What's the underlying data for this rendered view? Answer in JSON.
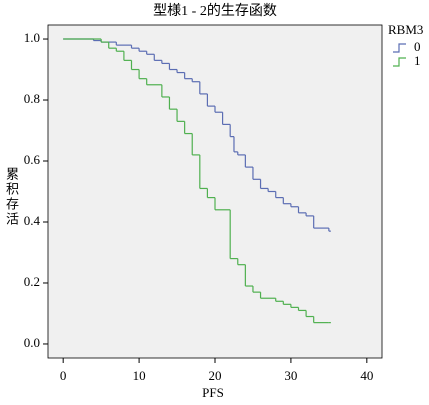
{
  "chart_data": {
    "type": "step",
    "title": "型様1 - 2的生存函数",
    "xlabel": "PFS",
    "ylabel": "累积存活",
    "legend_title": "RBM3",
    "legend": "right",
    "xlim": [
      -2,
      42
    ],
    "ylim": [
      -0.046,
      1.046
    ],
    "xticks": [
      0,
      10,
      20,
      30,
      40
    ],
    "yticks": [
      {
        "value": 0,
        "label": "0.0"
      },
      {
        "value": 0.2,
        "label": "0.2"
      },
      {
        "value": 0.4,
        "label": "0.4"
      },
      {
        "value": 0.6,
        "label": "0.6"
      },
      {
        "value": 0.8,
        "label": "0.8"
      },
      {
        "value": 1,
        "label": "1.0"
      }
    ],
    "series": [
      {
        "name": "0",
        "color": "#5b6db3",
        "x": [
          0,
          4,
          5,
          7,
          9,
          10,
          11,
          12,
          13,
          14,
          15,
          16,
          17,
          18,
          19,
          20,
          21,
          22,
          22.5,
          23,
          24,
          25,
          26,
          27,
          28,
          29,
          30,
          31,
          32,
          33,
          35
        ],
        "values": [
          1.0,
          0.995,
          0.99,
          0.98,
          0.97,
          0.96,
          0.95,
          0.93,
          0.92,
          0.9,
          0.89,
          0.87,
          0.86,
          0.82,
          0.78,
          0.76,
          0.72,
          0.68,
          0.63,
          0.62,
          0.58,
          0.54,
          0.51,
          0.5,
          0.48,
          0.46,
          0.45,
          0.43,
          0.42,
          0.38,
          0.37
        ]
      },
      {
        "name": "1",
        "color": "#4fb04f",
        "x": [
          0,
          5,
          6,
          7,
          8,
          9,
          10,
          11,
          13,
          14,
          15,
          16,
          17,
          18,
          19,
          20,
          22,
          23,
          24,
          25,
          26,
          28,
          29,
          30,
          31,
          32,
          33,
          35
        ],
        "values": [
          1.0,
          0.99,
          0.97,
          0.96,
          0.93,
          0.9,
          0.87,
          0.85,
          0.81,
          0.77,
          0.73,
          0.69,
          0.62,
          0.51,
          0.48,
          0.44,
          0.28,
          0.26,
          0.19,
          0.17,
          0.15,
          0.14,
          0.13,
          0.12,
          0.11,
          0.09,
          0.07,
          0.07
        ]
      }
    ]
  }
}
